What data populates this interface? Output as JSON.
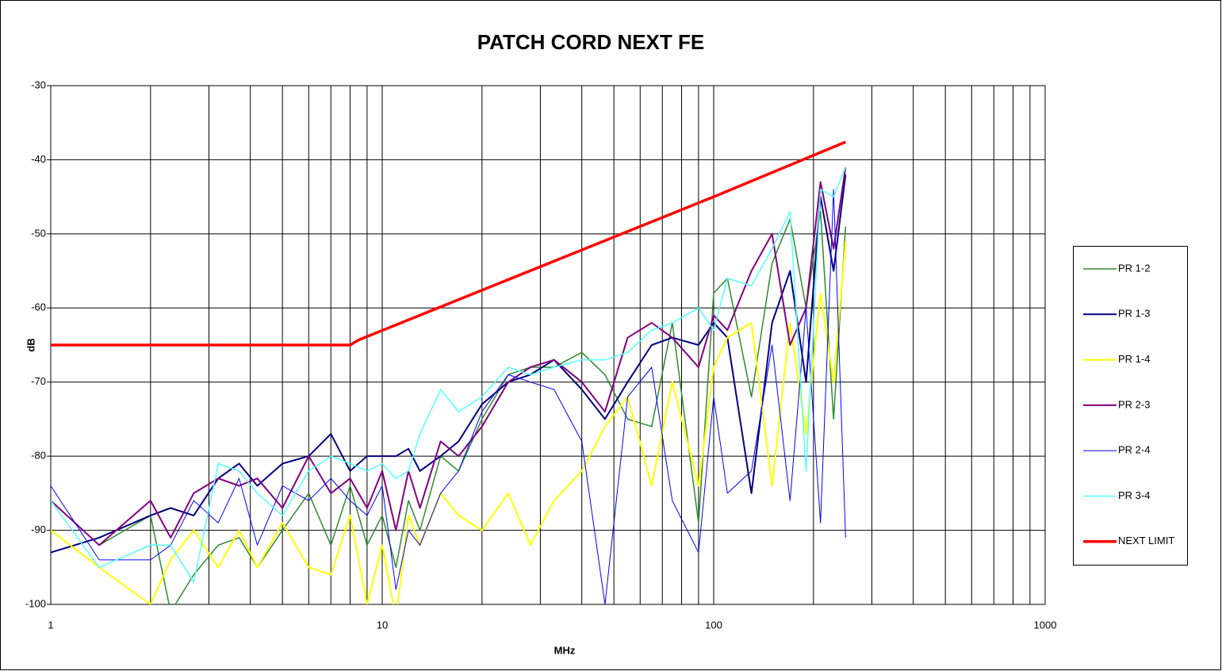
{
  "chart_data": {
    "type": "line",
    "title": "PATCH CORD NEXT FE",
    "x_label": "MHz",
    "y_label": "dB",
    "x_scale": "log",
    "grid": true,
    "legend": "right",
    "xlim": [
      1,
      1000
    ],
    "xticks": [
      1,
      10,
      100,
      1000
    ],
    "x_minor_ticks": [
      2,
      3,
      4,
      5,
      6,
      7,
      8,
      9,
      20,
      30,
      40,
      50,
      60,
      70,
      80,
      90,
      200,
      300,
      400,
      500,
      600,
      700,
      800,
      900
    ],
    "ylim": [
      -100,
      -30
    ],
    "yticks": [
      -100,
      -90,
      -80,
      -70,
      -60,
      -50,
      -40,
      -30
    ],
    "x": [
      1,
      1.4,
      2,
      2.3,
      2.7,
      3.2,
      3.7,
      4.2,
      5,
      6,
      7,
      8,
      9,
      10,
      11,
      12,
      13,
      15,
      17,
      20,
      24,
      28,
      33,
      40,
      47,
      55,
      65,
      75,
      90,
      100,
      110,
      130,
      150,
      170,
      190,
      210,
      230,
      250
    ],
    "series": [
      {
        "name": "PR 1-2",
        "color": "#2e8b2e",
        "width": 1.5,
        "values": [
          -86,
          -92,
          -88,
          -101,
          -96,
          -92,
          -91,
          -95,
          -90,
          -85,
          -92,
          -84,
          -92,
          -88,
          -95,
          -86,
          -90,
          -80,
          -82,
          -75,
          -69,
          -68,
          -68,
          -66,
          -69,
          -75,
          -76,
          -62,
          -89,
          -58,
          -56,
          -72,
          -54,
          -48,
          -60,
          -47,
          -75,
          -49
        ]
      },
      {
        "name": "PR 1-3",
        "color": "#000080",
        "width": 2,
        "values": [
          -93,
          -91,
          -88,
          -87,
          -88,
          -83,
          -81,
          -84,
          -81,
          -80,
          -77,
          -82,
          -80,
          -80,
          -80,
          -79,
          -82,
          -80,
          -78,
          -73,
          -70,
          -69,
          -67,
          -71,
          -75,
          -70,
          -65,
          -64,
          -65,
          -62,
          -64,
          -85,
          -62,
          -55,
          -70,
          -45,
          -55,
          -42
        ]
      },
      {
        "name": "PR 1-4",
        "color": "#ffff00",
        "width": 2,
        "values": [
          -90,
          -95,
          -100,
          -94,
          -90,
          -95,
          -90,
          -95,
          -89,
          -95,
          -96,
          -88,
          -100,
          -92,
          -102,
          -88,
          -92,
          -85,
          -88,
          -90,
          -85,
          -92,
          -86,
          -82,
          -76,
          -72,
          -84,
          -70,
          -84,
          -68,
          -64,
          -62,
          -84,
          -62,
          -77,
          -58,
          -70,
          -51
        ]
      },
      {
        "name": "PR 2-3",
        "color": "#800080",
        "width": 2,
        "values": [
          -86,
          -92,
          -86,
          -91,
          -85,
          -83,
          -84,
          -83,
          -87,
          -80,
          -85,
          -83,
          -87,
          -82,
          -90,
          -82,
          -87,
          -78,
          -80,
          -76,
          -70,
          -68,
          -67,
          -70,
          -74,
          -64,
          -62,
          -64,
          -68,
          -61,
          -63,
          -55,
          -50,
          -65,
          -60,
          -43,
          -52,
          -41
        ]
      },
      {
        "name": "PR 2-4",
        "color": "#0000ff",
        "width": 1,
        "values": [
          -84,
          -94,
          -94,
          -92,
          -86,
          -89,
          -83,
          -92,
          -84,
          -86,
          -83,
          -86,
          -88,
          -84,
          -98,
          -90,
          -92,
          -85,
          -82,
          -74,
          -69,
          -70,
          -71,
          -78,
          -100,
          -72,
          -68,
          -86,
          -93,
          -72,
          -85,
          -82,
          -65,
          -86,
          -60,
          -89,
          -44,
          -91
        ]
      },
      {
        "name": "PR 3-4",
        "color": "#55ffff",
        "width": 1.5,
        "values": [
          -86,
          -95,
          -92,
          -92,
          -97,
          -81,
          -82,
          -85,
          -88,
          -82,
          -80,
          -81,
          -82,
          -81,
          -83,
          -82,
          -77,
          -71,
          -74,
          -72,
          -68,
          -69,
          -68,
          -67,
          -67,
          -66,
          -63,
          -62,
          -60,
          -63,
          -56,
          -57,
          -52,
          -47,
          -82,
          -44,
          -45,
          -41
        ]
      },
      {
        "name": "NEXT LIMIT",
        "color": "#ff0000",
        "width": 3.5,
        "x": [
          1,
          8,
          8.5,
          100,
          250
        ],
        "values": [
          -65,
          -65,
          -64.3,
          -45,
          -37.6
        ]
      }
    ]
  }
}
